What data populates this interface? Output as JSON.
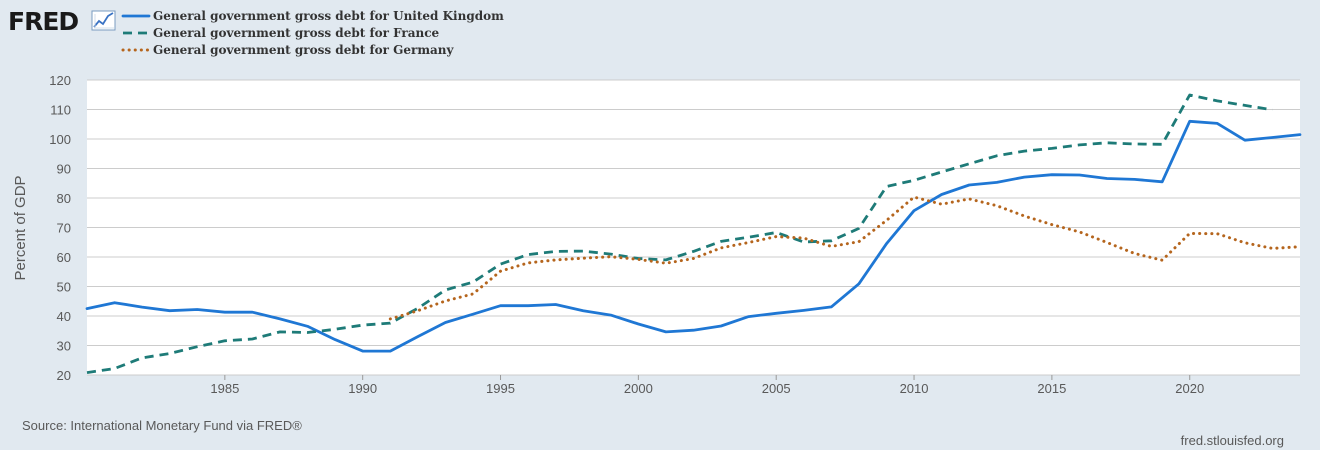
{
  "branding": {
    "logo_text": "FRED",
    "logo_icon": "line-graph-icon",
    "source": "Source: International Monetary Fund via FRED®",
    "site": "fred.stlouisfed.org"
  },
  "colors": {
    "background": "#e1e9f0",
    "plot": "#ffffff",
    "grid": "#cccccc",
    "uk": "#1f77d4",
    "france": "#1e7b78",
    "germany": "#b5651d"
  },
  "chart_data": {
    "type": "line",
    "title": "",
    "xlabel": "",
    "ylabel": "Percent of GDP",
    "xlim": [
      1980,
      2024
    ],
    "ylim": [
      20,
      120
    ],
    "x_ticks": [
      1985,
      1990,
      1995,
      2000,
      2005,
      2010,
      2015,
      2020
    ],
    "y_ticks": [
      20,
      30,
      40,
      50,
      60,
      70,
      80,
      90,
      100,
      110,
      120
    ],
    "grid": true,
    "legend_position": "top-left",
    "series": [
      {
        "name": "General government gross debt for United Kingdom",
        "style": "solid",
        "x": [
          1980,
          1981,
          1982,
          1983,
          1984,
          1985,
          1986,
          1987,
          1988,
          1989,
          1990,
          1991,
          1992,
          1993,
          1994,
          1995,
          1996,
          1997,
          1998,
          1999,
          2000,
          2001,
          2002,
          2003,
          2004,
          2005,
          2006,
          2007,
          2008,
          2009,
          2010,
          2011,
          2012,
          2013,
          2014,
          2015,
          2016,
          2017,
          2018,
          2019,
          2020,
          2021,
          2022,
          2023,
          2024
        ],
        "values": [
          42.5,
          44.5,
          43.0,
          41.8,
          42.2,
          41.3,
          41.3,
          39.0,
          36.5,
          32.0,
          28.1,
          28.1,
          33.0,
          37.8,
          40.6,
          43.5,
          43.5,
          43.9,
          41.8,
          40.3,
          37.3,
          34.6,
          35.2,
          36.6,
          39.8,
          40.9,
          41.9,
          43.1,
          50.9,
          64.5,
          75.7,
          81.2,
          84.4,
          85.3,
          87.1,
          87.9,
          87.8,
          86.6,
          86.3,
          85.5,
          106.0,
          105.3,
          99.6,
          100.5,
          101.5
        ]
      },
      {
        "name": "General government gross debt for France",
        "style": "dashed",
        "x": [
          1980,
          1981,
          1982,
          1983,
          1984,
          1985,
          1986,
          1987,
          1988,
          1989,
          1990,
          1991,
          1992,
          1993,
          1994,
          1995,
          1996,
          1997,
          1998,
          1999,
          2000,
          2001,
          2002,
          2003,
          2004,
          2005,
          2006,
          2007,
          2008,
          2009,
          2010,
          2011,
          2012,
          2013,
          2014,
          2015,
          2016,
          2017,
          2018,
          2019,
          2020,
          2021,
          2022,
          2023
        ],
        "values": [
          20.8,
          22.2,
          25.8,
          27.3,
          29.6,
          31.6,
          32.2,
          34.6,
          34.4,
          35.5,
          36.9,
          37.6,
          42.6,
          48.8,
          51.5,
          57.6,
          60.8,
          61.9,
          62.0,
          61.0,
          59.5,
          59.0,
          61.9,
          65.3,
          66.7,
          68.3,
          65.1,
          65.5,
          69.7,
          83.9,
          86.0,
          88.8,
          91.6,
          94.3,
          95.9,
          96.8,
          98.0,
          98.7,
          98.3,
          98.2,
          114.9,
          112.9,
          111.4,
          109.9
        ]
      },
      {
        "name": "General government gross debt for Germany",
        "style": "dotted",
        "x": [
          1991,
          1992,
          1993,
          1994,
          1995,
          1996,
          1997,
          1998,
          1999,
          2000,
          2001,
          2002,
          2003,
          2004,
          2005,
          2006,
          2007,
          2008,
          2009,
          2010,
          2011,
          2012,
          2013,
          2014,
          2015,
          2016,
          2017,
          2018,
          2019,
          2020,
          2021,
          2022,
          2023,
          2024
        ],
        "values": [
          39.0,
          41.8,
          45.1,
          47.5,
          55.2,
          58.0,
          59.0,
          59.6,
          60.1,
          59.2,
          57.9,
          59.5,
          63.1,
          64.9,
          66.9,
          66.4,
          63.6,
          65.2,
          72.4,
          80.3,
          77.9,
          79.7,
          77.4,
          73.9,
          71.0,
          68.5,
          64.9,
          61.2,
          58.9,
          68.0,
          67.9,
          64.8,
          62.9,
          63.5
        ]
      }
    ]
  }
}
